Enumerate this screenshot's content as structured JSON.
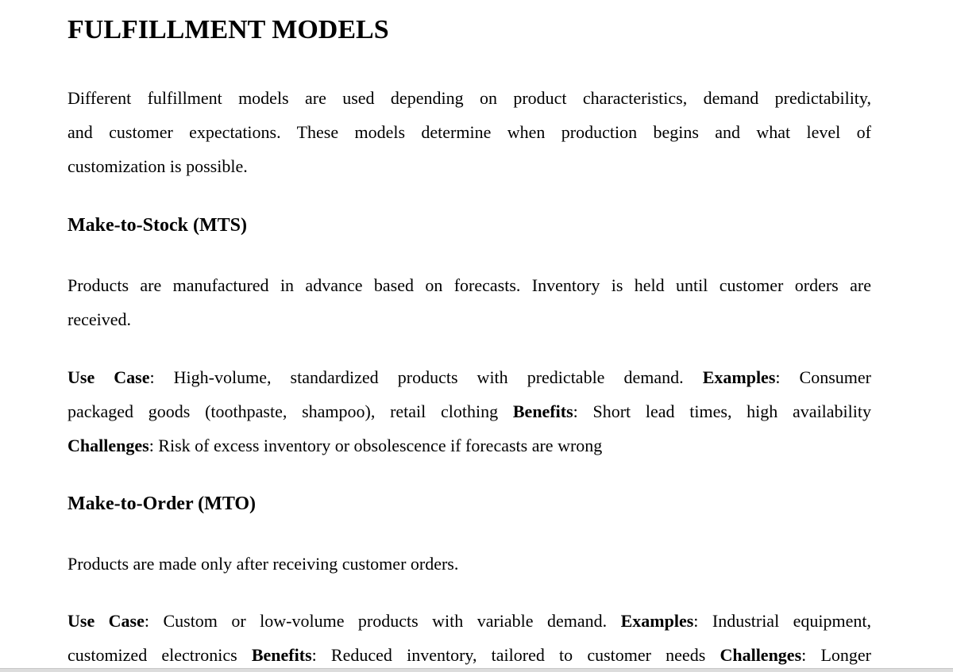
{
  "title": "FULFILLMENT MODELS",
  "intro": [
    [
      {
        "t": "Different fulfillment models are used depending on product characteristics, demand predictability,"
      }
    ],
    [
      {
        "t": "and customer expectations. These models determine when production begins and what level of"
      }
    ],
    [
      {
        "t": "customization is possible."
      }
    ]
  ],
  "mts": {
    "heading": "Make-to-Stock (MTS)",
    "desc": [
      [
        {
          "t": "Products are manufactured in advance based on forecasts. Inventory is held until customer orders are"
        }
      ],
      [
        {
          "t": "received."
        }
      ]
    ],
    "details": [
      [
        {
          "t": "Use Case",
          "b": true
        },
        {
          "t": ": High-volume, standardized products with predictable demand. "
        },
        {
          "t": "Examples",
          "b": true
        },
        {
          "t": ": Consumer"
        }
      ],
      [
        {
          "t": "packaged goods (toothpaste, shampoo), retail clothing "
        },
        {
          "t": "Benefits",
          "b": true
        },
        {
          "t": ": Short lead times, high availability"
        }
      ],
      [
        {
          "t": "Challenges",
          "b": true
        },
        {
          "t": ": Risk of excess inventory or obsolescence if forecasts are wrong"
        }
      ]
    ]
  },
  "mto": {
    "heading": "Make-to-Order (MTO)",
    "desc": [
      [
        {
          "t": "Products are made only after receiving customer orders."
        }
      ]
    ],
    "details": [
      [
        {
          "t": "Use Case",
          "b": true
        },
        {
          "t": ": Custom or low-volume products with variable demand. "
        },
        {
          "t": "Examples",
          "b": true
        },
        {
          "t": ": Industrial equipment,"
        }
      ],
      [
        {
          "t": "customized electronics "
        },
        {
          "t": "Benefits",
          "b": true
        },
        {
          "t": ": Reduced inventory, tailored to customer needs "
        },
        {
          "t": "Challenges",
          "b": true
        },
        {
          "t": ": Longer"
        }
      ]
    ]
  }
}
